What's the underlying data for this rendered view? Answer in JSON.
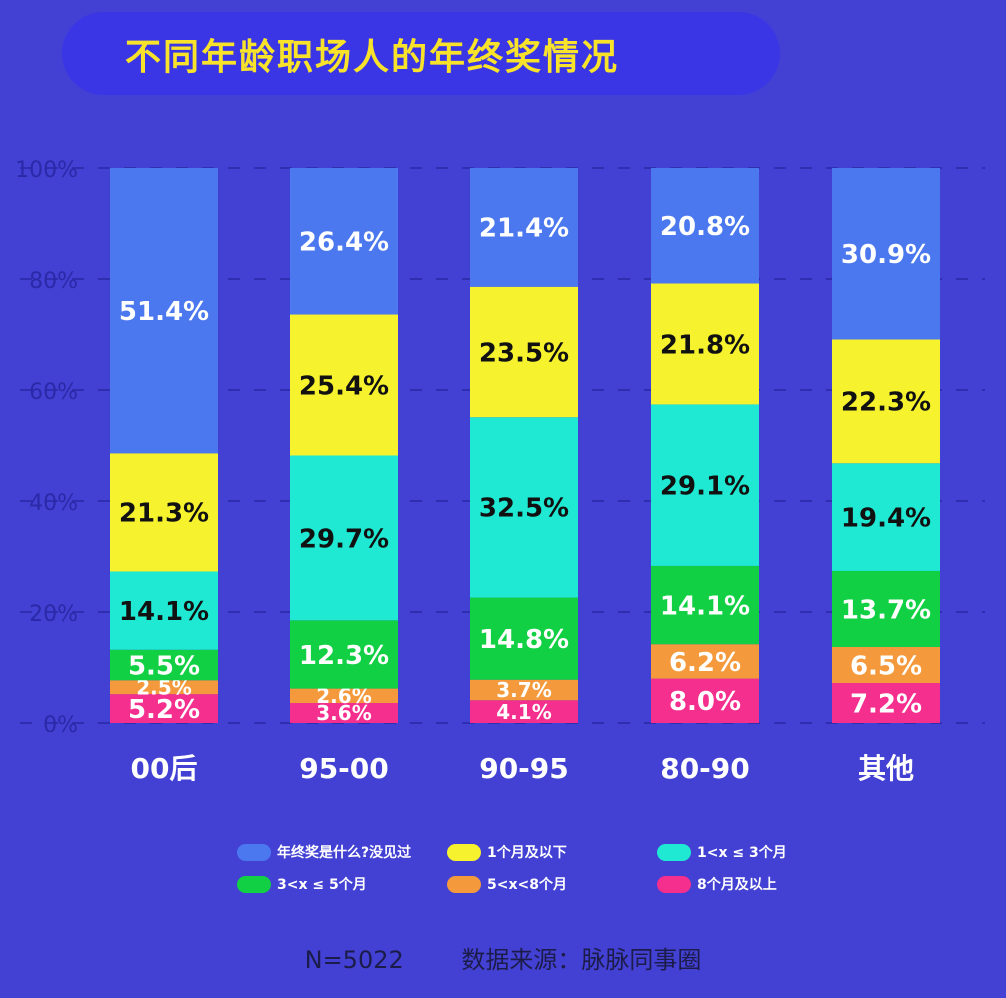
{
  "chart_data": {
    "type": "bar",
    "stacked": true,
    "title": "不同年龄职场人的年终奖情况",
    "categories": [
      "00后",
      "95-00",
      "90-95",
      "80-90",
      "其他"
    ],
    "ylim": [
      0,
      100
    ],
    "yticks": [
      "0%",
      "20%",
      "40%",
      "60%",
      "80%",
      "100%"
    ],
    "grid": true,
    "legend_position": "bottom",
    "series": [
      {
        "name": "8个月及以上",
        "color": "#f42f8e",
        "label_color": "#ffffff",
        "values": [
          5.2,
          3.6,
          4.1,
          8.0,
          7.2
        ]
      },
      {
        "name": "5<x<8个月",
        "color": "#f49a3c",
        "label_color": "#ffffff",
        "values": [
          2.5,
          2.6,
          3.7,
          6.2,
          6.5
        ]
      },
      {
        "name": "3<x ≤ 5个月",
        "color": "#12d043",
        "label_color": "#ffffff",
        "values": [
          5.5,
          12.3,
          14.8,
          14.1,
          13.7
        ]
      },
      {
        "name": "1<x ≤ 3个月",
        "color": "#1fe9d2",
        "label_color": "#111111",
        "values": [
          14.1,
          29.7,
          32.5,
          29.1,
          19.4
        ]
      },
      {
        "name": "1个月及以下",
        "color": "#f6f22e",
        "label_color": "#111111",
        "values": [
          21.3,
          25.4,
          23.5,
          21.8,
          22.3
        ]
      },
      {
        "name": "年终奖是什么?没见过",
        "color": "#4b78ee",
        "label_color": "#ffffff",
        "values": [
          51.4,
          26.4,
          21.4,
          20.8,
          30.9
        ]
      }
    ],
    "legend_order": [
      5,
      4,
      3,
      2,
      1,
      0
    ]
  },
  "footer": {
    "n": "N=5022",
    "source": "数据来源：脉脉同事圈"
  }
}
